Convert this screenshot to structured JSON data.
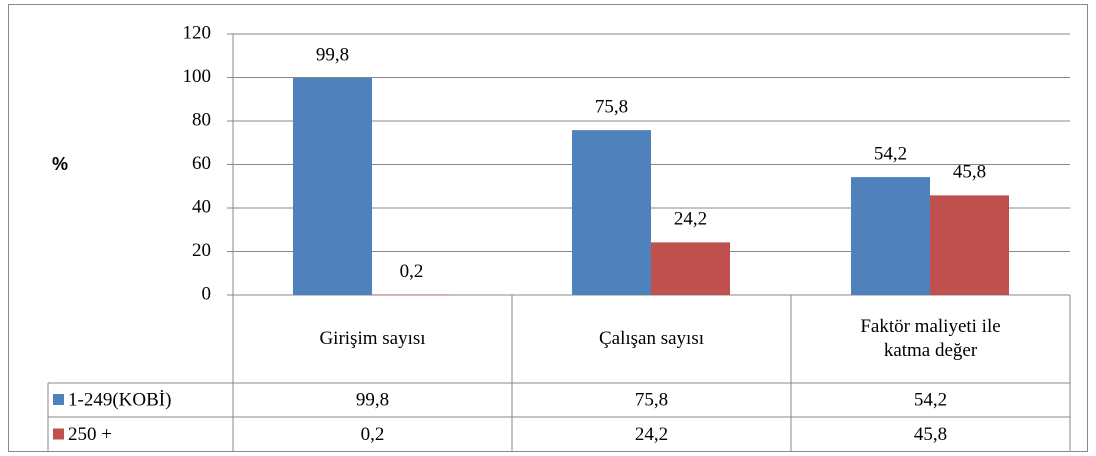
{
  "chart_data": {
    "type": "bar",
    "y_label": "%",
    "categories": [
      "Girişim sayısı",
      "Çalışan sayısı",
      "Faktör maliyeti ile katma değer"
    ],
    "series": [
      {
        "name": "1-249(KOBİ)",
        "color": "#4f81bd",
        "values": [
          99.8,
          75.8,
          54.2
        ],
        "value_labels": [
          "99,8",
          "75,8",
          "54,2"
        ]
      },
      {
        "name": "250 +",
        "color": "#c0504d",
        "values": [
          0.2,
          24.2,
          45.8
        ],
        "value_labels": [
          "0,2",
          "24,2",
          "45,8"
        ]
      }
    ],
    "ylim": [
      0,
      120
    ],
    "yticks": [
      0,
      20,
      40,
      60,
      80,
      100,
      120
    ],
    "grid": true
  }
}
